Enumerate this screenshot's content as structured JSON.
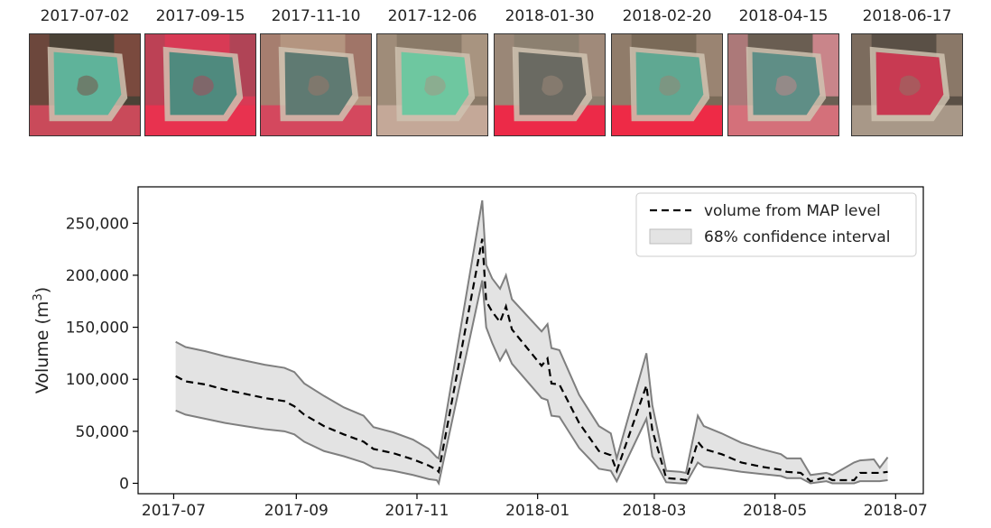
{
  "thumbnails": [
    {
      "date": "2017-07-02",
      "water": "#5fb39a",
      "surround": "#4a4236",
      "field": "#7a4a3e",
      "crop": "#c94a5a"
    },
    {
      "date": "2017-09-15",
      "water": "#4f8a7e",
      "surround": "#d83a55",
      "field": "#b04456",
      "crop": "#e8324f"
    },
    {
      "date": "2017-11-10",
      "water": "#5f7a72",
      "surround": "#b49580",
      "field": "#a07568",
      "crop": "#d4485e"
    },
    {
      "date": "2017-12-06",
      "water": "#6ec7a0",
      "surround": "#8a7a68",
      "field": "#a89480",
      "crop": "#c4a898"
    },
    {
      "date": "2018-01-30",
      "water": "#6a6a62",
      "surround": "#8c8070",
      "field": "#a08a7a",
      "crop": "#ec2a48"
    },
    {
      "date": "2018-02-20",
      "water": "#5fa892",
      "surround": "#7a6a58",
      "field": "#9a8472",
      "crop": "#ee2a46"
    },
    {
      "date": "2018-04-15",
      "water": "#5f8e86",
      "surround": "#6a5e52",
      "field": "#c9858a",
      "crop": "#d4707a"
    },
    {
      "date": "2018-06-17",
      "water": "#c83a52",
      "surround": "#5a5046",
      "field": "#8a7868",
      "crop": "#a89888"
    }
  ],
  "chart_data": {
    "type": "line",
    "title": "",
    "xlabel": "",
    "ylabel": "Volume (m³)",
    "x_tick_labels": [
      "2017-07",
      "2017-09",
      "2017-11",
      "2018-01",
      "2018-03",
      "2018-05",
      "2018-07"
    ],
    "x_ticks": [
      "2017-07-01",
      "2017-09-01",
      "2017-11-01",
      "2018-01-01",
      "2018-03-01",
      "2018-05-01",
      "2018-07-01"
    ],
    "xlim": [
      "2017-06-13",
      "2018-07-15"
    ],
    "y_tick_labels": [
      "0",
      "50,000",
      "100,000",
      "150,000",
      "200,000",
      "250,000"
    ],
    "y_ticks": [
      0,
      50000,
      100000,
      150000,
      200000,
      250000
    ],
    "ylim": [
      -10000,
      285000
    ],
    "legend": {
      "position": "top-right",
      "entries": [
        "volume from MAP level",
        "68% confidence interval"
      ]
    },
    "colors": {
      "line": "#000000",
      "band_fill": "#e3e3e3",
      "band_edge": "#7f7f7f"
    },
    "series": [
      {
        "name": "volume from MAP level",
        "x": [
          "2017-07-02",
          "2017-07-07",
          "2017-07-17",
          "2017-07-27",
          "2017-08-06",
          "2017-08-16",
          "2017-08-26",
          "2017-08-31",
          "2017-09-05",
          "2017-09-15",
          "2017-09-25",
          "2017-10-05",
          "2017-10-10",
          "2017-10-20",
          "2017-10-30",
          "2017-11-07",
          "2017-11-11",
          "2017-11-12",
          "2017-12-04",
          "2017-12-06",
          "2017-12-09",
          "2017-12-13",
          "2017-12-16",
          "2017-12-19",
          "2018-01-03",
          "2018-01-06",
          "2018-01-08",
          "2018-01-12",
          "2018-01-22",
          "2018-02-01",
          "2018-02-07",
          "2018-02-10",
          "2018-02-25",
          "2018-02-28",
          "2018-03-07",
          "2018-03-14",
          "2018-03-17",
          "2018-03-23",
          "2018-03-26",
          "2018-04-04",
          "2018-04-14",
          "2018-04-24",
          "2018-05-04",
          "2018-05-07",
          "2018-05-14",
          "2018-05-19",
          "2018-05-27",
          "2018-05-30",
          "2018-06-10",
          "2018-06-13",
          "2018-06-20",
          "2018-06-23",
          "2018-06-27"
        ],
        "y": [
          103000,
          98000,
          95000,
          90000,
          86000,
          82000,
          79000,
          74000,
          66000,
          55000,
          47000,
          40000,
          33000,
          29000,
          23000,
          17000,
          13000,
          11000,
          235000,
          175000,
          165000,
          155000,
          170000,
          148000,
          113000,
          120000,
          96000,
          95000,
          58000,
          31000,
          27000,
          12000,
          94000,
          51000,
          5000,
          4000,
          3000,
          40000,
          33000,
          28000,
          20000,
          16000,
          13000,
          11000,
          10000,
          2000,
          6000,
          3000,
          3000,
          10000,
          10000,
          10000,
          11000
        ]
      },
      {
        "name": "68% confidence interval",
        "x": [
          "2017-07-02",
          "2017-07-07",
          "2017-07-17",
          "2017-07-27",
          "2017-08-06",
          "2017-08-16",
          "2017-08-26",
          "2017-08-31",
          "2017-09-05",
          "2017-09-15",
          "2017-09-25",
          "2017-10-05",
          "2017-10-10",
          "2017-10-20",
          "2017-10-30",
          "2017-11-07",
          "2017-11-11",
          "2017-11-12",
          "2017-12-04",
          "2017-12-06",
          "2017-12-09",
          "2017-12-13",
          "2017-12-16",
          "2017-12-19",
          "2018-01-03",
          "2018-01-06",
          "2018-01-08",
          "2018-01-12",
          "2018-01-22",
          "2018-02-01",
          "2018-02-07",
          "2018-02-10",
          "2018-02-25",
          "2018-02-28",
          "2018-03-07",
          "2018-03-14",
          "2018-03-17",
          "2018-03-23",
          "2018-03-26",
          "2018-04-04",
          "2018-04-14",
          "2018-04-24",
          "2018-05-04",
          "2018-05-07",
          "2018-05-14",
          "2018-05-19",
          "2018-05-27",
          "2018-05-30",
          "2018-06-10",
          "2018-06-13",
          "2018-06-20",
          "2018-06-23",
          "2018-06-27"
        ],
        "lower": [
          70000,
          66000,
          62000,
          58000,
          55000,
          52000,
          50000,
          47000,
          40000,
          31000,
          26000,
          20000,
          15000,
          12000,
          8000,
          4000,
          3000,
          0,
          195000,
          150000,
          135000,
          118000,
          128000,
          115000,
          82000,
          80000,
          65000,
          64000,
          34000,
          14000,
          12000,
          2000,
          62000,
          26000,
          1000,
          0,
          0,
          20000,
          16000,
          14000,
          11000,
          9000,
          7000,
          5000,
          5000,
          0,
          2000,
          0,
          0,
          2000,
          2000,
          2000,
          3000
        ],
        "upper": [
          136000,
          131000,
          127000,
          122000,
          118000,
          114000,
          111000,
          107000,
          96000,
          84000,
          73000,
          65000,
          54000,
          49000,
          42000,
          33000,
          25000,
          24000,
          272000,
          210000,
          197000,
          187000,
          200000,
          177000,
          146000,
          153000,
          130000,
          128000,
          85000,
          55000,
          48000,
          24000,
          125000,
          75000,
          12000,
          11000,
          10000,
          65000,
          55000,
          48000,
          39000,
          33000,
          28000,
          24000,
          24000,
          8000,
          10000,
          8000,
          20000,
          22000,
          23000,
          15000,
          25000
        ]
      }
    ]
  }
}
